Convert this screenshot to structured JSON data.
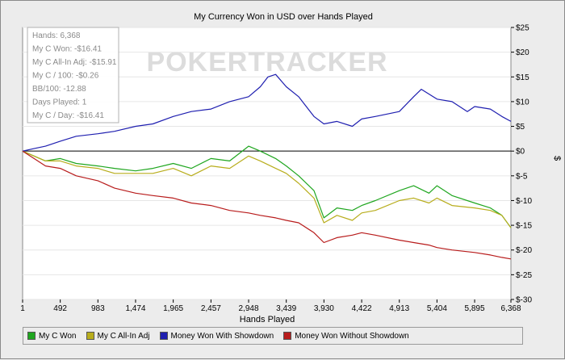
{
  "chart_data": {
    "type": "line",
    "title": "My Currency Won in USD over Hands Played",
    "xlabel": "Hands Played",
    "ylabel": "$",
    "xlim": [
      1,
      6368
    ],
    "ylim": [
      -30,
      25
    ],
    "x_ticks": [
      "1",
      "492",
      "983",
      "1,474",
      "1,965",
      "2,457",
      "2,948",
      "3,439",
      "3,930",
      "4,422",
      "4,913",
      "5,404",
      "5,895",
      "6,368"
    ],
    "x_tick_values": [
      1,
      492,
      983,
      1474,
      1965,
      2457,
      2948,
      3439,
      3930,
      4422,
      4913,
      5404,
      5895,
      6368
    ],
    "y_ticks": [
      "$25",
      "$20",
      "$15",
      "$10",
      "$5",
      "$0",
      "$-5",
      "$-10",
      "$-15",
      "$-20",
      "$-25",
      "$-30"
    ],
    "y_tick_values": [
      25,
      20,
      15,
      10,
      5,
      0,
      -5,
      -10,
      -15,
      -20,
      -25,
      -30
    ],
    "legend_position": "bottom",
    "series": [
      {
        "name": "My C Won",
        "color": "#1fa61f",
        "x": [
          1,
          150,
          300,
          492,
          700,
          983,
          1200,
          1474,
          1700,
          1965,
          2200,
          2457,
          2700,
          2948,
          3100,
          3300,
          3439,
          3600,
          3800,
          3930,
          4100,
          4300,
          4422,
          4600,
          4913,
          5100,
          5300,
          5404,
          5600,
          5895,
          6100,
          6250,
          6368
        ],
        "y": [
          0,
          -1,
          -2,
          -1.5,
          -2.5,
          -3,
          -3.5,
          -4,
          -3.5,
          -2.5,
          -3.5,
          -1.5,
          -2,
          1,
          0,
          -1.5,
          -3,
          -5,
          -8,
          -13.5,
          -11.5,
          -12,
          -11,
          -10,
          -8,
          -7,
          -8.5,
          -7,
          -9,
          -10.5,
          -11.5,
          -13,
          -15.5
        ]
      },
      {
        "name": "My C All-In Adj",
        "color": "#b8ad1c",
        "x": [
          1,
          150,
          300,
          492,
          700,
          983,
          1200,
          1474,
          1700,
          1965,
          2200,
          2457,
          2700,
          2948,
          3100,
          3300,
          3439,
          3600,
          3800,
          3930,
          4100,
          4300,
          4422,
          4600,
          4913,
          5100,
          5300,
          5404,
          5600,
          5895,
          6100,
          6250,
          6368
        ],
        "y": [
          0,
          -1,
          -2,
          -2,
          -3,
          -3.5,
          -4.5,
          -4.5,
          -4.5,
          -3.5,
          -5,
          -3,
          -3.5,
          -1,
          -2,
          -3.5,
          -4.5,
          -6.5,
          -9.5,
          -14.5,
          -13,
          -14,
          -12.5,
          -12,
          -10,
          -9.5,
          -10.5,
          -9.5,
          -11,
          -11.5,
          -12,
          -13,
          -15.5
        ]
      },
      {
        "name": "Money Won With Showdown",
        "color": "#1f1fb0",
        "x": [
          1,
          150,
          300,
          492,
          700,
          983,
          1200,
          1474,
          1700,
          1965,
          2200,
          2457,
          2700,
          2948,
          3100,
          3200,
          3300,
          3439,
          3600,
          3800,
          3930,
          4100,
          4300,
          4422,
          4600,
          4913,
          5100,
          5200,
          5404,
          5600,
          5800,
          5895,
          6100,
          6250,
          6368
        ],
        "y": [
          0,
          0.5,
          1,
          2,
          3,
          3.5,
          4,
          5,
          5.5,
          7,
          8,
          8.5,
          10,
          11,
          13,
          15,
          15.5,
          13,
          11,
          7,
          5.5,
          6,
          5,
          6.5,
          7,
          8,
          11,
          12.5,
          10.5,
          10,
          8,
          9,
          8.5,
          7,
          6
        ]
      },
      {
        "name": "Money Won Without Showdown",
        "color": "#b81c1c",
        "x": [
          1,
          150,
          300,
          492,
          700,
          983,
          1200,
          1474,
          1700,
          1965,
          2200,
          2457,
          2700,
          2948,
          3100,
          3300,
          3439,
          3600,
          3800,
          3930,
          4100,
          4300,
          4422,
          4600,
          4913,
          5100,
          5300,
          5404,
          5600,
          5895,
          6100,
          6250,
          6368
        ],
        "y": [
          0,
          -1.5,
          -3,
          -3.5,
          -5,
          -6,
          -7.5,
          -8.5,
          -9,
          -9.5,
          -10.5,
          -11,
          -12,
          -12.5,
          -13,
          -13.5,
          -14,
          -14.5,
          -16.5,
          -18.5,
          -17.5,
          -17,
          -16.5,
          -17,
          -18,
          -18.5,
          -19,
          -19.5,
          -20,
          -20.5,
          -21,
          -21.5,
          -21.8
        ]
      }
    ]
  },
  "stats": [
    "Hands: 6,368",
    "My C Won: -$16.41",
    "My C All-In Adj: -$15.91",
    "My C / 100: -$0.26",
    "BB/100: -12.88",
    "Days Played: 1",
    "My C / Day: -$16.41"
  ],
  "watermark": "POKERTRACKER"
}
